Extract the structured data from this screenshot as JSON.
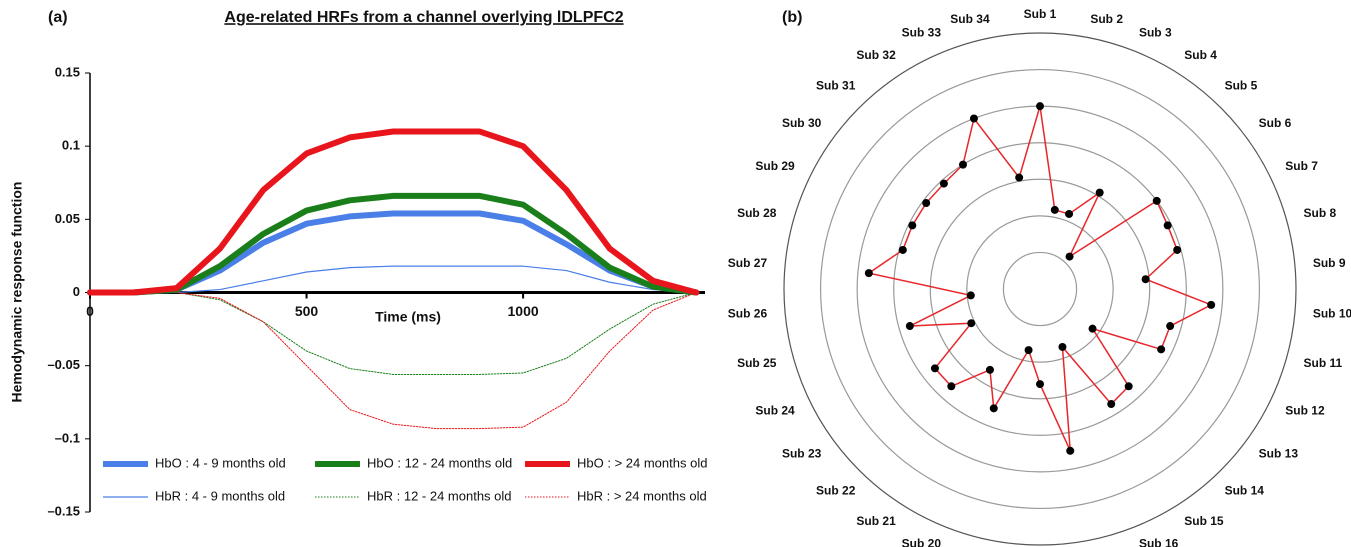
{
  "chart_data": [
    {
      "type": "line",
      "panel_label": "(a)",
      "title": "Age-related HRFs from a channel overlying lDLPFC2",
      "x_label": "Time (ms)",
      "y_label": "Hemodynamic response function",
      "x": [
        0,
        100,
        200,
        300,
        400,
        500,
        600,
        700,
        800,
        900,
        1000,
        1100,
        1200,
        1300,
        1400
      ],
      "xlim": [
        0,
        1420
      ],
      "xticks": [
        0,
        500,
        1000
      ],
      "ylim": [
        -0.15,
        0.15
      ],
      "yticks": [
        0.15,
        0.1,
        0.05,
        0,
        {
          "value": -0.05,
          "label": "–0.05"
        },
        {
          "value": -0.1,
          "label": "–0.1"
        },
        {
          "value": -0.15,
          "label": "–0.15"
        }
      ],
      "series": [
        {
          "name": "HbO : 4 - 9 months old",
          "color": "#4a7fe8",
          "linewidth": 6,
          "dash": false,
          "values": [
            0,
            0,
            0.002,
            0.015,
            0.034,
            0.047,
            0.052,
            0.054,
            0.054,
            0.054,
            0.049,
            0.033,
            0.015,
            0.004,
            0
          ]
        },
        {
          "name": "HbO : 12 - 24 months old",
          "color": "#1a7f1a",
          "linewidth": 6,
          "dash": false,
          "values": [
            0,
            0,
            0.002,
            0.018,
            0.04,
            0.056,
            0.063,
            0.066,
            0.066,
            0.066,
            0.06,
            0.04,
            0.017,
            0.004,
            0
          ]
        },
        {
          "name": "HbO : > 24 months old",
          "color": "#e8161c",
          "linewidth": 6,
          "dash": false,
          "values": [
            0,
            0,
            0.003,
            0.03,
            0.07,
            0.095,
            0.106,
            0.11,
            0.11,
            0.11,
            0.1,
            0.07,
            0.03,
            0.008,
            0
          ]
        },
        {
          "name": "HbR : 4 - 9 months old",
          "color": "#4a7fe8",
          "linewidth": 1.2,
          "dash": false,
          "values": [
            0,
            0,
            0,
            0.002,
            0.008,
            0.014,
            0.017,
            0.018,
            0.018,
            0.018,
            0.018,
            0.015,
            0.007,
            0.002,
            0
          ]
        },
        {
          "name": "HbR : 12 - 24 months old",
          "color": "#1a7f1a",
          "linewidth": 1,
          "dash": true,
          "values": [
            0,
            0,
            0,
            -0.005,
            -0.02,
            -0.04,
            -0.052,
            -0.056,
            -0.056,
            -0.056,
            -0.055,
            -0.045,
            -0.025,
            -0.008,
            0
          ]
        },
        {
          "name": "HbR : > 24 months old",
          "color": "#e8161c",
          "linewidth": 1,
          "dash": true,
          "values": [
            0,
            0,
            0,
            -0.004,
            -0.02,
            -0.05,
            -0.08,
            -0.09,
            -0.093,
            -0.093,
            -0.092,
            -0.075,
            -0.04,
            -0.012,
            0
          ]
        }
      ]
    },
    {
      "type": "radar",
      "panel_label": "(b)",
      "color": "#e8262a",
      "categories": [
        "Sub 1",
        "Sub 2",
        "Sub 3",
        "Sub 4",
        "Sub 5",
        "Sub 6",
        "Sub 7",
        "Sub 8",
        "Sub 9",
        "Sub 10",
        "Sub 11",
        "Sub 12",
        "Sub 13",
        "Sub 14",
        "Sub 15",
        "Sub 16",
        "Sub 17",
        "Sub 18",
        "Sub 19",
        "Sub 20",
        "Sub 21",
        "Sub 22",
        "Sub 23",
        "Sub 24",
        "Sub 25",
        "Sub 26",
        "Sub 27",
        "Sub 28",
        "Sub 29",
        "Sub 30",
        "Sub 31",
        "Sub 32",
        "Sub 33",
        "Sub 34"
      ],
      "values": [
        5.0,
        2.2,
        2.2,
        3.1,
        1.2,
        4.0,
        3.9,
        3.9,
        2.9,
        4.7,
        3.7,
        3.7,
        1.8,
        3.6,
        3.7,
        1.7,
        4.5,
        2.6,
        1.7,
        3.5,
        2.6,
        3.6,
        3.6,
        2.1,
        3.7,
        1.9,
        4.7,
        3.9,
        3.9,
        3.9,
        3.9,
        4.0,
        5.0,
        3.1
      ],
      "rlim": [
        0,
        7
      ],
      "rticks": [
        1,
        2,
        3,
        4,
        5,
        6,
        7
      ]
    }
  ]
}
